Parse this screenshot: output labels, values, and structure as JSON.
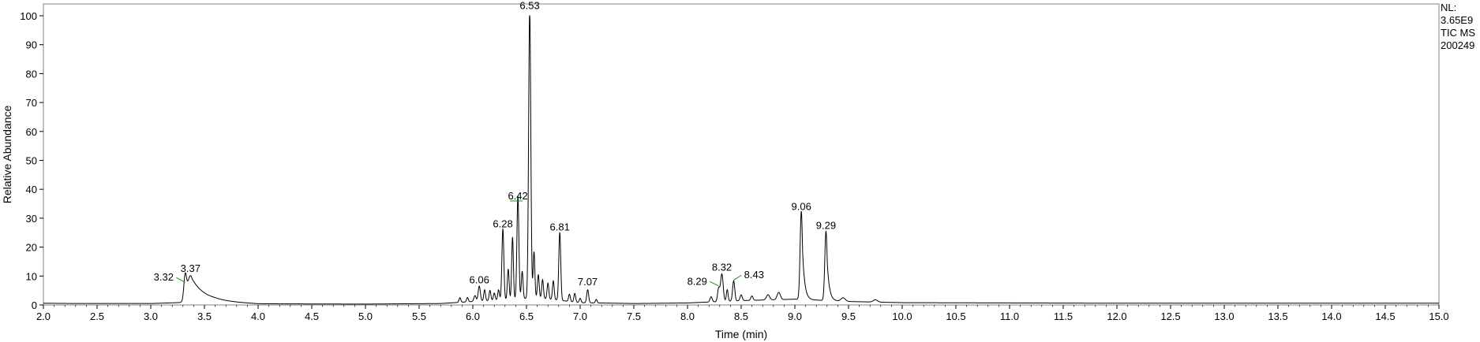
{
  "info": {
    "nl_label": "NL:",
    "nl_value": "3.65E9",
    "scan_filter": "TIC  MS",
    "file_id": "200249"
  },
  "chart_data": {
    "type": "line",
    "title": "",
    "xlabel": "Time (min)",
    "ylabel": "Relative Abundance",
    "xlim": [
      2.0,
      15.0
    ],
    "ylim": [
      0,
      100
    ],
    "xticks": [
      2.0,
      2.5,
      3.0,
      3.5,
      4.0,
      4.5,
      5.0,
      5.5,
      6.0,
      6.5,
      7.0,
      7.5,
      8.0,
      8.5,
      9.0,
      9.5,
      10.0,
      10.5,
      11.0,
      11.5,
      12.0,
      12.5,
      13.0,
      13.5,
      14.0,
      14.5,
      15.0
    ],
    "xtick_labels": [
      "2.0",
      "2.5",
      "3.0",
      "3.5",
      "4.0",
      "4.5",
      "5.0",
      "5.5",
      "6.0",
      "6.5",
      "7.0",
      "7.5",
      "8.0",
      "8.5",
      "9.0",
      "9.5",
      "10.0",
      "10.5",
      "11.0",
      "11.5",
      "12.0",
      "12.5",
      "13.0",
      "13.5",
      "14.0",
      "14.5",
      "15.0"
    ],
    "yticks": [
      0,
      10,
      20,
      30,
      40,
      50,
      60,
      70,
      80,
      90,
      100
    ],
    "ytick_labels": [
      "0",
      "10",
      "20",
      "30",
      "40",
      "50",
      "60",
      "70",
      "80",
      "90",
      "100"
    ],
    "grid": false,
    "line_color": "#000000",
    "label_line_color": "#1a8f1a",
    "baseline": [
      {
        "x": 2.0,
        "y": 0.6
      },
      {
        "x": 2.3,
        "y": 0.5
      },
      {
        "x": 3.0,
        "y": 0.5
      },
      {
        "x": 3.25,
        "y": 0.8
      },
      {
        "x": 3.6,
        "y": 1.2
      },
      {
        "x": 4.0,
        "y": 0.4
      },
      {
        "x": 5.0,
        "y": 0.3
      },
      {
        "x": 5.7,
        "y": 0.5
      },
      {
        "x": 6.0,
        "y": 1.2
      },
      {
        "x": 6.6,
        "y": 2.5
      },
      {
        "x": 7.0,
        "y": 0.8
      },
      {
        "x": 7.5,
        "y": 0.5
      },
      {
        "x": 8.0,
        "y": 0.7
      },
      {
        "x": 8.5,
        "y": 1.5
      },
      {
        "x": 9.0,
        "y": 2.0
      },
      {
        "x": 9.5,
        "y": 1.2
      },
      {
        "x": 10.0,
        "y": 0.8
      },
      {
        "x": 12.0,
        "y": 0.6
      },
      {
        "x": 15.0,
        "y": 0.6
      }
    ],
    "peaks": [
      {
        "rt": 3.32,
        "height": 7.8,
        "width": 0.012,
        "tail": 0
      },
      {
        "rt": 3.37,
        "height": 9.2,
        "width": 0.03,
        "tail": 0.12
      },
      {
        "rt": 5.88,
        "height": 1.6,
        "width": 0.008,
        "tail": 0
      },
      {
        "rt": 5.95,
        "height": 1.5,
        "width": 0.008,
        "tail": 0
      },
      {
        "rt": 6.02,
        "height": 2.0,
        "width": 0.01,
        "tail": 0
      },
      {
        "rt": 6.06,
        "height": 5.2,
        "width": 0.01,
        "tail": 0
      },
      {
        "rt": 6.11,
        "height": 3.8,
        "width": 0.008,
        "tail": 0
      },
      {
        "rt": 6.16,
        "height": 3.5,
        "width": 0.008,
        "tail": 0
      },
      {
        "rt": 6.2,
        "height": 2.5,
        "width": 0.008,
        "tail": 0
      },
      {
        "rt": 6.24,
        "height": 3.5,
        "width": 0.008,
        "tail": 0
      },
      {
        "rt": 6.28,
        "height": 24.5,
        "width": 0.009,
        "tail": 0
      },
      {
        "rt": 6.33,
        "height": 10.5,
        "width": 0.008,
        "tail": 0
      },
      {
        "rt": 6.37,
        "height": 21.5,
        "width": 0.008,
        "tail": 0
      },
      {
        "rt": 6.42,
        "height": 35.5,
        "width": 0.009,
        "tail": 0
      },
      {
        "rt": 6.46,
        "height": 9.5,
        "width": 0.008,
        "tail": 0
      },
      {
        "rt": 6.53,
        "height": 100.0,
        "width": 0.01,
        "tail": 0
      },
      {
        "rt": 6.57,
        "height": 16.0,
        "width": 0.008,
        "tail": 0
      },
      {
        "rt": 6.61,
        "height": 8.0,
        "width": 0.008,
        "tail": 0
      },
      {
        "rt": 6.65,
        "height": 6.5,
        "width": 0.008,
        "tail": 0
      },
      {
        "rt": 6.7,
        "height": 5.5,
        "width": 0.008,
        "tail": 0
      },
      {
        "rt": 6.75,
        "height": 6.5,
        "width": 0.008,
        "tail": 0
      },
      {
        "rt": 6.81,
        "height": 23.5,
        "width": 0.009,
        "tail": 0
      },
      {
        "rt": 6.9,
        "height": 2.5,
        "width": 0.008,
        "tail": 0
      },
      {
        "rt": 6.95,
        "height": 3.0,
        "width": 0.008,
        "tail": 0
      },
      {
        "rt": 7.0,
        "height": 1.5,
        "width": 0.008,
        "tail": 0
      },
      {
        "rt": 7.07,
        "height": 4.5,
        "width": 0.009,
        "tail": 0
      },
      {
        "rt": 7.15,
        "height": 1.2,
        "width": 0.008,
        "tail": 0
      },
      {
        "rt": 8.22,
        "height": 1.8,
        "width": 0.01,
        "tail": 0
      },
      {
        "rt": 8.29,
        "height": 4.5,
        "width": 0.01,
        "tail": 0
      },
      {
        "rt": 8.32,
        "height": 9.5,
        "width": 0.012,
        "tail": 0
      },
      {
        "rt": 8.37,
        "height": 4.0,
        "width": 0.008,
        "tail": 0
      },
      {
        "rt": 8.43,
        "height": 7.0,
        "width": 0.01,
        "tail": 0
      },
      {
        "rt": 8.5,
        "height": 2.0,
        "width": 0.01,
        "tail": 0
      },
      {
        "rt": 8.6,
        "height": 1.5,
        "width": 0.01,
        "tail": 0
      },
      {
        "rt": 8.75,
        "height": 1.8,
        "width": 0.015,
        "tail": 0
      },
      {
        "rt": 8.85,
        "height": 2.5,
        "width": 0.015,
        "tail": 0
      },
      {
        "rt": 9.06,
        "height": 30.5,
        "width": 0.011,
        "tail": 0.02
      },
      {
        "rt": 9.29,
        "height": 24.0,
        "width": 0.011,
        "tail": 0.02
      },
      {
        "rt": 9.45,
        "height": 1.2,
        "width": 0.02,
        "tail": 0
      },
      {
        "rt": 9.75,
        "height": 0.8,
        "width": 0.02,
        "tail": 0
      }
    ],
    "peak_labels": [
      {
        "text": "3.32",
        "x": 3.32,
        "y": 7.8,
        "label_x": 3.12,
        "label_y": 8.4
      },
      {
        "text": "3.37",
        "x": 3.37,
        "y": 9.2,
        "label_x": 3.37,
        "label_y": 11.5
      },
      {
        "text": "6.06",
        "x": 6.06,
        "y": 5.2,
        "label_x": 6.06,
        "label_y": 7.5
      },
      {
        "text": "6.28",
        "x": 6.28,
        "y": 24.5,
        "label_x": 6.28,
        "label_y": 26.8
      },
      {
        "text": "6.42",
        "x": 6.42,
        "y": 35.5,
        "label_x": 6.42,
        "label_y": 36.5
      },
      {
        "text": "6.53",
        "x": 6.53,
        "y": 100.0,
        "label_x": 6.53,
        "label_y": 102.3
      },
      {
        "text": "6.81",
        "x": 6.81,
        "y": 23.5,
        "label_x": 6.81,
        "label_y": 25.8
      },
      {
        "text": "7.07",
        "x": 7.07,
        "y": 4.5,
        "label_x": 7.07,
        "label_y": 6.8
      },
      {
        "text": "8.29",
        "x": 8.29,
        "y": 6.6,
        "label_x": 8.09,
        "label_y": 7.0
      },
      {
        "text": "8.32",
        "x": 8.32,
        "y": 9.5,
        "label_x": 8.32,
        "label_y": 11.8
      },
      {
        "text": "8.43",
        "x": 8.43,
        "y": 8.6,
        "label_x": 8.62,
        "label_y": 9.2
      },
      {
        "text": "9.06",
        "x": 9.06,
        "y": 30.5,
        "label_x": 9.06,
        "label_y": 32.8
      },
      {
        "text": "9.29",
        "x": 9.29,
        "y": 24.0,
        "label_x": 9.29,
        "label_y": 26.3
      }
    ]
  }
}
